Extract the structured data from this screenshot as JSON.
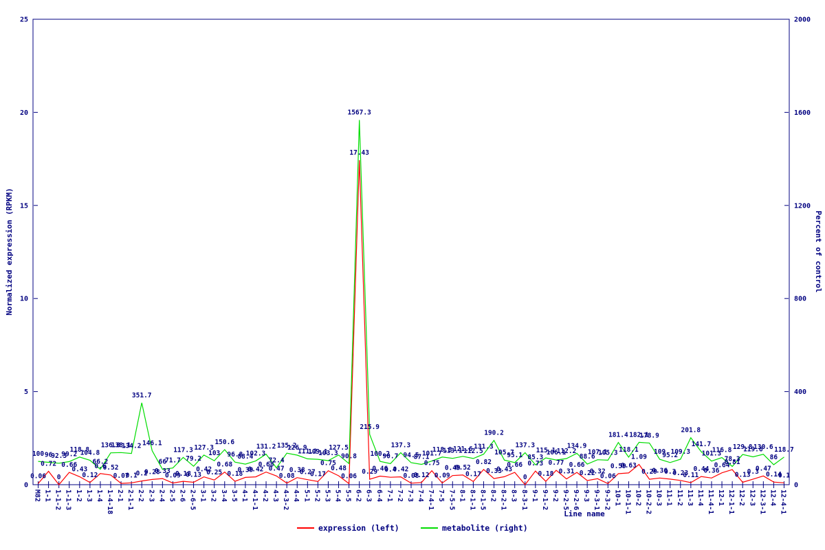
{
  "chart_data": {
    "type": "line",
    "title": "",
    "xlabel": "Line name",
    "grid": false,
    "label_color": "#000080",
    "border_color": "#000080",
    "categories": [
      "M82",
      "1-1",
      "1-1-2",
      "1-1-3",
      "1-2",
      "1-3",
      "1-4",
      "1-4-18",
      "2-1",
      "2-1-1",
      "2-2",
      "2-3",
      "2-4",
      "2-5",
      "2-6",
      "2-6-5",
      "3-1",
      "3-2",
      "3-4",
      "3-5",
      "4-1",
      "4-1-1",
      "4-2",
      "4-3",
      "4-3-2",
      "4-4",
      "5-1",
      "5-2",
      "5-3",
      "5-4",
      "5-5",
      "6-2",
      "6-3",
      "6-4",
      "7-1",
      "7-2",
      "7-3",
      "7-4",
      "7-4-1",
      "7-5",
      "7-5-5",
      "8-1",
      "8-1-1",
      "8-1-5",
      "8-2",
      "8-2-1",
      "8-3",
      "8-3-1",
      "9-1",
      "9-1-2",
      "9-2",
      "9-2-5",
      "9-2-6",
      "9-3",
      "9-3-1",
      "9-3-2",
      "10-1",
      "10-1-1",
      "10-2",
      "10-2-2",
      "10-3",
      "11-1",
      "11-2",
      "11-3",
      "11-4",
      "11-4-1",
      "12-1",
      "12-1-1",
      "12-2",
      "12-3",
      "12-3-1",
      "12-4",
      "12-4-1"
    ],
    "series": [
      {
        "name": "expression (left)",
        "axis": "left",
        "color": "#ff0000",
        "values": [
          "0.06",
          "0.72",
          "0",
          "0.66",
          "0.43",
          "0.12",
          "0.6",
          "0.52",
          "0.07",
          "0.1",
          "0.2",
          "0.28",
          "0.33",
          "0.09",
          "0.18",
          "0.13",
          "0.42",
          "0.25",
          "0.68",
          "0.18",
          "0.39",
          "0.42",
          "0.68",
          "0.47",
          "0.08",
          "0.38",
          "0.27",
          "0.17",
          "0.75",
          "0.48",
          "0.06",
          "17.43",
          "0.29",
          "0.46",
          "0.4",
          "0.42",
          "0.08",
          "0.12",
          "0.75",
          "0.09",
          "0.49",
          "0.52",
          "0.17",
          "0.82",
          "0.33",
          "0.43",
          "0.66",
          "0",
          "0.73",
          "0.18",
          "0.77",
          "0.31",
          "0.66",
          "0.22",
          "0.32",
          "0.06",
          "0.59",
          "0.63",
          "1.09",
          "0.29",
          "0.36",
          "0.3",
          "0.23",
          "0.11",
          "0.44",
          "0.36",
          "0.64",
          "0.81",
          "0.13",
          "0.3",
          "0.47",
          "0.14",
          "0.1"
        ]
      },
      {
        "name": "metabolite (right)",
        "axis": "right",
        "color": "#00dd00",
        "values": [
          "100",
          "96",
          "92.3",
          "99.2",
          "118.8",
          "104.8",
          "66.2",
          "136.8",
          "138.1",
          "134.2",
          "351.7",
          "146.1",
          "66",
          "71.7",
          "117.3",
          "79.2",
          "127.3",
          "103",
          "150.6",
          "96.8",
          "88.4",
          "102.3",
          "131.2",
          "72.4",
          "135.2",
          "126.9",
          "111.2",
          "109.1",
          "103.3",
          "127.5",
          "90.8",
          "1567.3",
          "215.9",
          "100.2",
          "90.7",
          "137.3",
          "94.5",
          "87.1",
          "101.7",
          "118.8",
          "113.1",
          "121.6",
          "112.5",
          "131.3",
          "190.2",
          "105.7",
          "95.1",
          "137.3",
          "85.3",
          "115.1",
          "106.1",
          "112.2",
          "134.9",
          "88.6",
          "107.1",
          "105.3",
          "181.4",
          "118.1",
          "182.1",
          "178.9",
          "109",
          "95.2",
          "109.3",
          "201.8",
          "141.7",
          "101.3",
          "116.8",
          "78.3",
          "129.8",
          "119.6",
          "130.6",
          "86",
          "118.7"
        ]
      }
    ],
    "axes": {
      "left": {
        "label": "Normalized expression (RPKM)",
        "min": 0,
        "max": 25,
        "ticks": [
          "0",
          "5",
          "10",
          "15",
          "20",
          "25"
        ]
      },
      "right": {
        "label": "Percent of control",
        "min": 0,
        "max": 2000,
        "ticks": [
          "0",
          "400",
          "800",
          "1200",
          "1600",
          "2000"
        ]
      }
    },
    "legend": {
      "position": "bottom-center",
      "entries": [
        {
          "label": "expression (left)",
          "color": "#ff0000"
        },
        {
          "label": "metabolite (right)",
          "color": "#00dd00"
        }
      ]
    }
  }
}
